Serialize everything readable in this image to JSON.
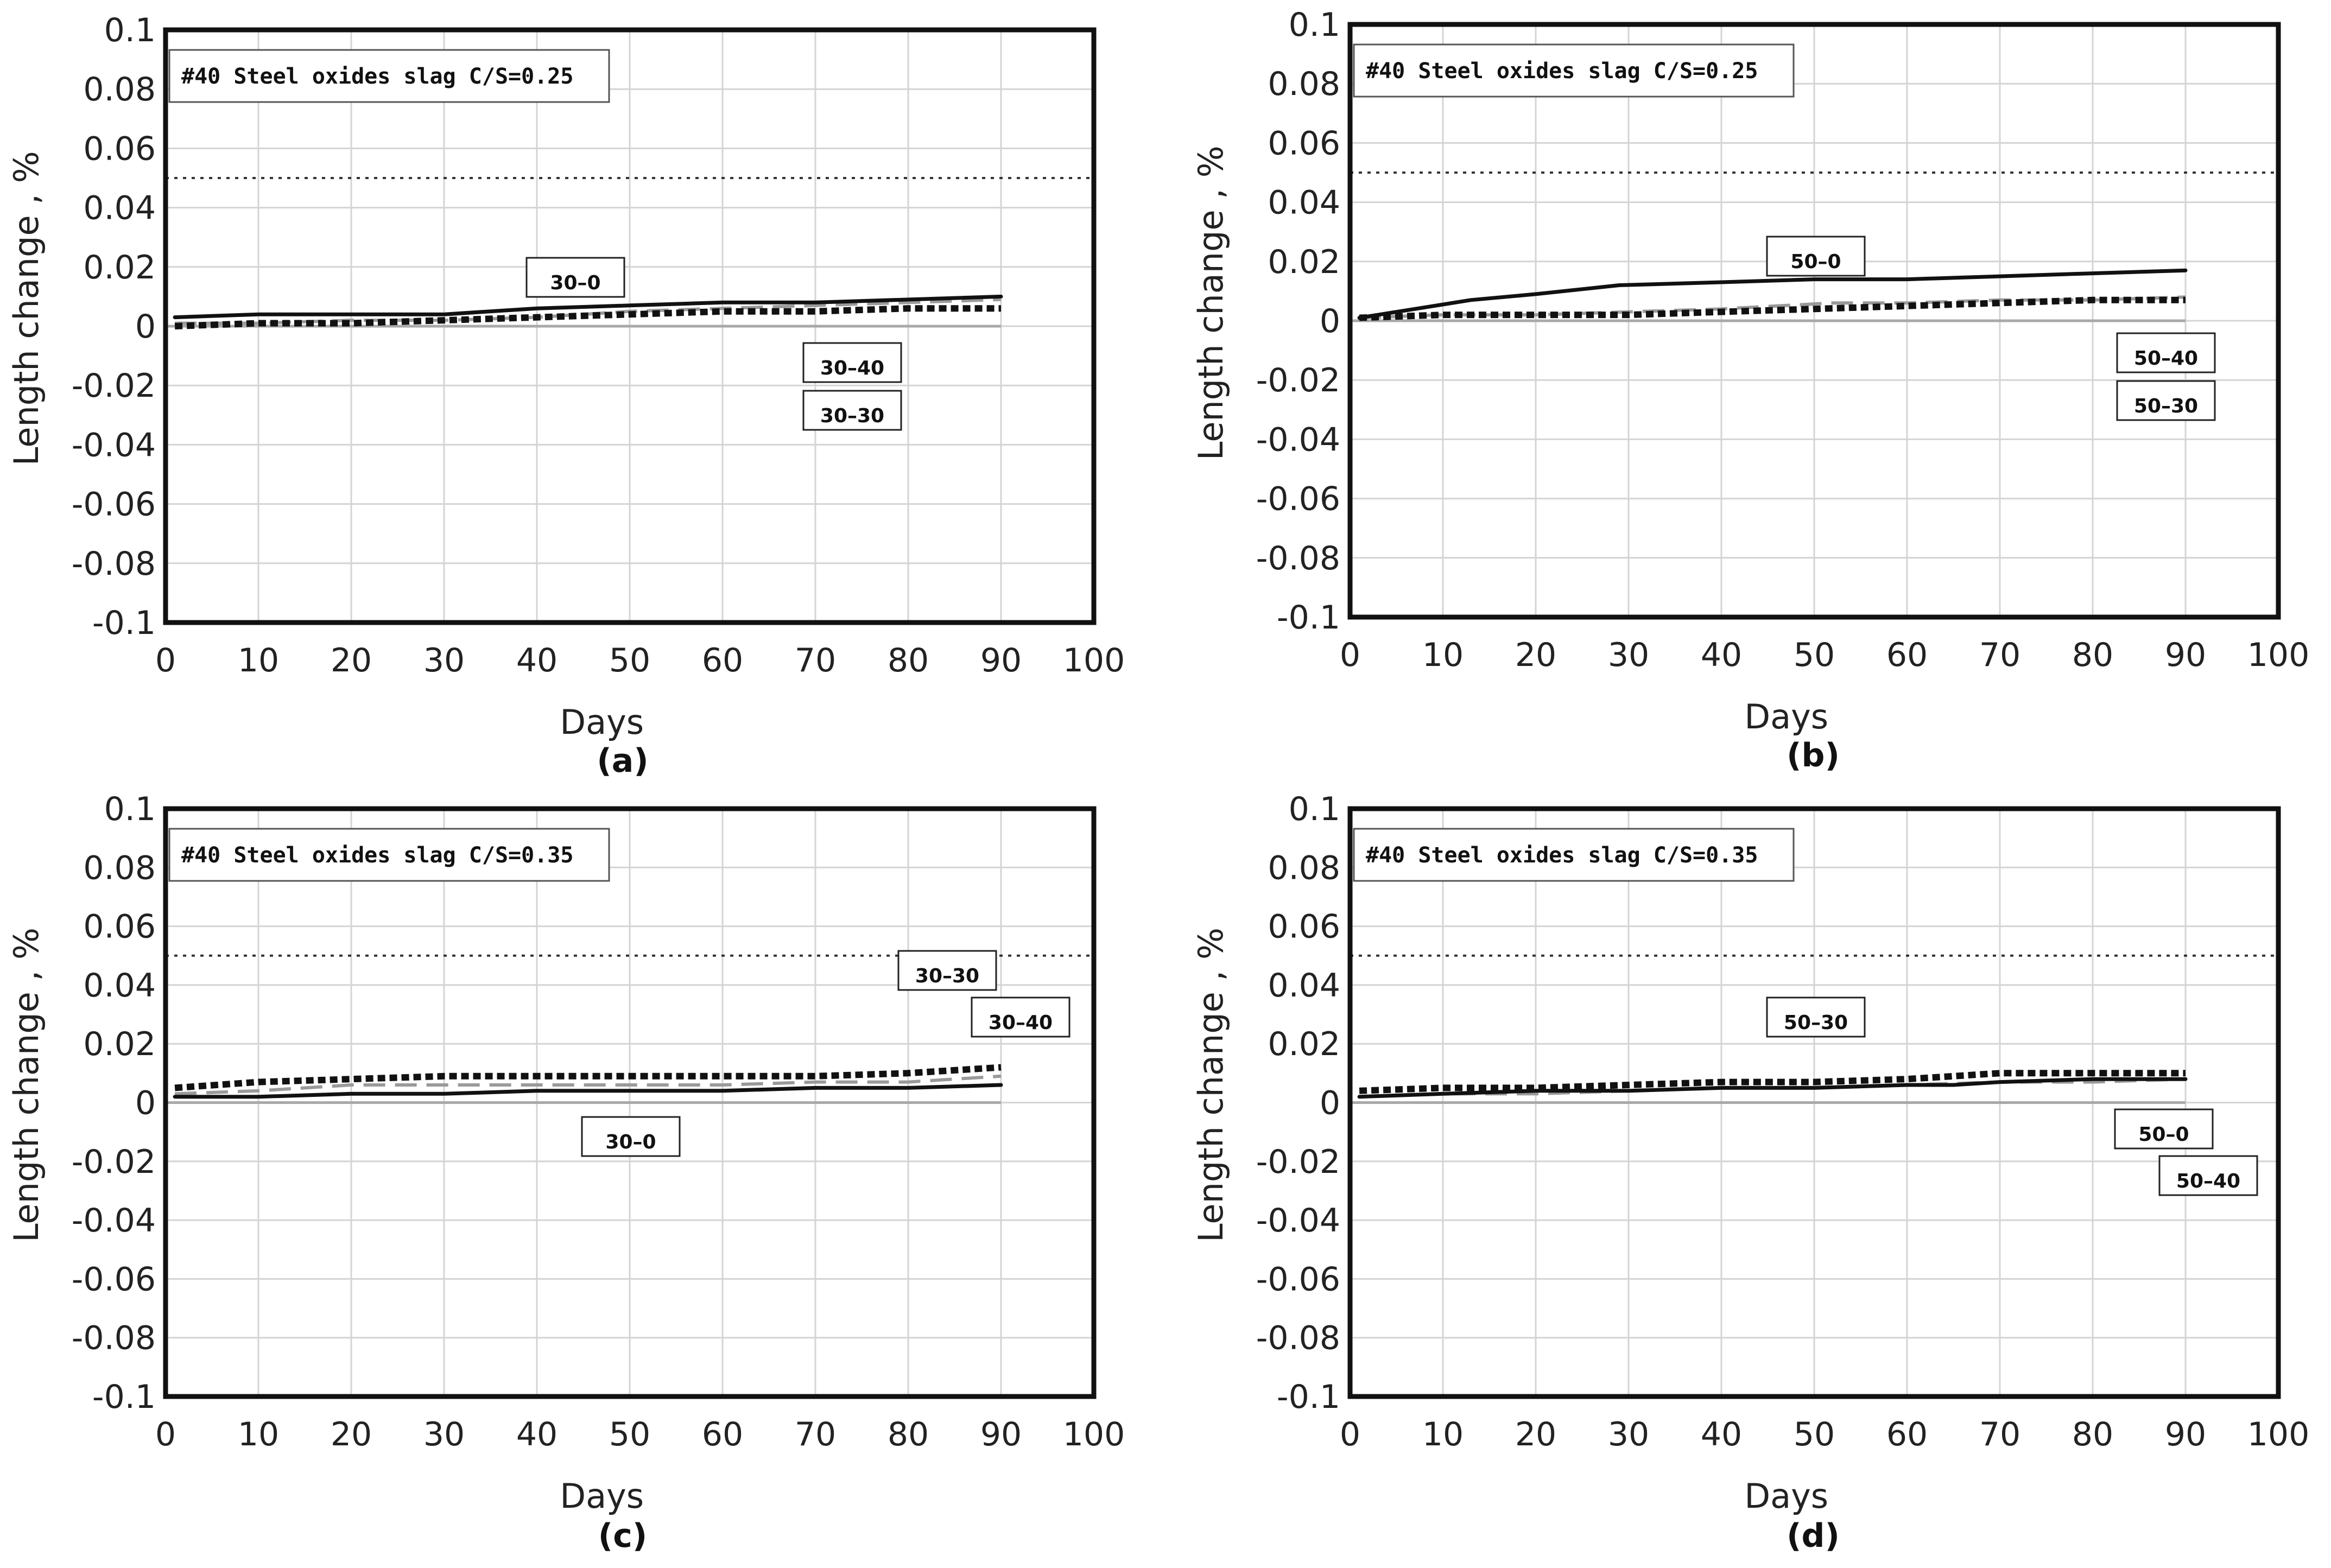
{
  "chart_data": [
    {
      "type": "line",
      "panel": "(a)",
      "title": "#40 Steel oxides slag C/S=0.25",
      "xlabel": "Days",
      "ylabel": "Length change , %",
      "xlim": [
        0,
        100
      ],
      "ylim": [
        -0.1,
        0.1
      ],
      "xticks": [
        "0",
        "10",
        "20",
        "30",
        "40",
        "50",
        "60",
        "70",
        "80",
        "90",
        "100"
      ],
      "yticks": [
        "0.1",
        "0.08",
        "0.06",
        "0.04",
        "0.02",
        "0",
        "-0.02",
        "-0.04",
        "-0.06",
        "-0.08",
        "-0.1"
      ],
      "grid": true,
      "limit_line": 0.05,
      "series": [
        {
          "name": "30–0",
          "style": "solid-black",
          "x": [
            1,
            10,
            20,
            30,
            40,
            50,
            60,
            70,
            80,
            90
          ],
          "y": [
            0.003,
            0.004,
            0.004,
            0.004,
            0.006,
            0.007,
            0.008,
            0.008,
            0.009,
            0.01
          ]
        },
        {
          "name": "30–30",
          "style": "dash-grey",
          "x": [
            1,
            10,
            20,
            30,
            40,
            50,
            60,
            70,
            80,
            90
          ],
          "y": [
            0.001,
            0.001,
            0.002,
            0.002,
            0.003,
            0.005,
            0.006,
            0.007,
            0.008,
            0.009
          ]
        },
        {
          "name": "30–40",
          "style": "dotted-black-thick",
          "x": [
            1,
            10,
            20,
            30,
            40,
            50,
            60,
            70,
            80,
            90
          ],
          "y": [
            0.0,
            0.001,
            0.001,
            0.002,
            0.003,
            0.004,
            0.005,
            0.005,
            0.006,
            0.006
          ]
        }
      ],
      "callouts": [
        "30–0",
        "30–40",
        "30–30"
      ]
    },
    {
      "type": "line",
      "panel": "(b)",
      "title": "#40 Steel oxides slag C/S=0.25",
      "xlabel": "Days",
      "ylabel": "Length change , %",
      "xlim": [
        0,
        100
      ],
      "ylim": [
        -0.1,
        0.1
      ],
      "xticks": [
        "0",
        "10",
        "20",
        "30",
        "40",
        "50",
        "60",
        "70",
        "80",
        "90",
        "100"
      ],
      "yticks": [
        "0.1",
        "0.08",
        "0.06",
        "0.04",
        "0.02",
        "0",
        "-0.02",
        "-0.04",
        "-0.06",
        "-0.08",
        "-0.1"
      ],
      "grid": true,
      "limit_line": 0.05,
      "series": [
        {
          "name": "50–0",
          "style": "solid-black",
          "x": [
            1,
            7,
            13,
            20,
            29,
            40,
            50,
            60,
            70,
            80,
            90
          ],
          "y": [
            0.001,
            0.004,
            0.007,
            0.009,
            0.012,
            0.013,
            0.014,
            0.014,
            0.015,
            0.016,
            0.017
          ]
        },
        {
          "name": "50–30",
          "style": "dash-grey",
          "x": [
            1,
            10,
            20,
            30,
            40,
            52,
            60,
            70,
            80,
            90
          ],
          "y": [
            0.001,
            0.002,
            0.002,
            0.003,
            0.004,
            0.006,
            0.006,
            0.007,
            0.007,
            0.008
          ]
        },
        {
          "name": "50–40",
          "style": "dotted-black-thick",
          "x": [
            1,
            10,
            20,
            30,
            40,
            50,
            60,
            70,
            80,
            90
          ],
          "y": [
            0.001,
            0.002,
            0.002,
            0.002,
            0.003,
            0.004,
            0.005,
            0.006,
            0.007,
            0.007
          ]
        }
      ],
      "callouts": [
        "50–0",
        "50–40",
        "50–30"
      ]
    },
    {
      "type": "line",
      "panel": "(c)",
      "title": "#40 Steel oxides slag C/S=0.35",
      "xlabel": "Days",
      "ylabel": "Length change , %",
      "xlim": [
        0,
        100
      ],
      "ylim": [
        -0.1,
        0.1
      ],
      "xticks": [
        "0",
        "10",
        "20",
        "30",
        "40",
        "50",
        "60",
        "70",
        "80",
        "90",
        "100"
      ],
      "yticks": [
        "0.1",
        "0.08",
        "0.06",
        "0.04",
        "0.02",
        "0",
        "-0.02",
        "-0.04",
        "-0.06",
        "-0.08",
        "-0.1"
      ],
      "grid": true,
      "limit_line": 0.05,
      "series": [
        {
          "name": "30–0",
          "style": "solid-black",
          "x": [
            1,
            10,
            20,
            30,
            40,
            50,
            60,
            70,
            80,
            90
          ],
          "y": [
            0.002,
            0.002,
            0.003,
            0.003,
            0.004,
            0.004,
            0.004,
            0.005,
            0.005,
            0.006
          ]
        },
        {
          "name": "30–30",
          "style": "dash-grey",
          "x": [
            1,
            10,
            20,
            30,
            40,
            50,
            60,
            70,
            80,
            90
          ],
          "y": [
            0.003,
            0.004,
            0.006,
            0.006,
            0.006,
            0.006,
            0.006,
            0.007,
            0.007,
            0.009
          ]
        },
        {
          "name": "30–40",
          "style": "dotted-black-thick",
          "x": [
            1,
            10,
            20,
            30,
            40,
            50,
            60,
            70,
            80,
            85,
            90
          ],
          "y": [
            0.005,
            0.007,
            0.008,
            0.009,
            0.009,
            0.009,
            0.009,
            0.009,
            0.01,
            0.011,
            0.012
          ]
        }
      ],
      "callouts": [
        "30–30",
        "30–40",
        "30–0"
      ]
    },
    {
      "type": "line",
      "panel": "(d)",
      "title": "#40 Steel oxides slag C/S=0.35",
      "xlabel": "Days",
      "ylabel": "Length change , %",
      "xlim": [
        0,
        100
      ],
      "ylim": [
        -0.1,
        0.1
      ],
      "xticks": [
        "0",
        "10",
        "20",
        "30",
        "40",
        "50",
        "60",
        "70",
        "80",
        "90",
        "100"
      ],
      "yticks": [
        "0.1",
        "0.08",
        "0.06",
        "0.04",
        "0.02",
        "0",
        "-0.02",
        "-0.04",
        "-0.06",
        "-0.08",
        "-0.1"
      ],
      "grid": true,
      "limit_line": 0.05,
      "series": [
        {
          "name": "50–0",
          "style": "solid-black",
          "x": [
            1,
            10,
            20,
            30,
            40,
            50,
            60,
            65,
            70,
            80,
            90
          ],
          "y": [
            0.002,
            0.003,
            0.004,
            0.004,
            0.005,
            0.005,
            0.006,
            0.006,
            0.007,
            0.008,
            0.008
          ]
        },
        {
          "name": "50–30",
          "style": "dash-grey",
          "x": [
            1,
            10,
            20,
            30,
            40,
            50,
            60,
            70,
            80,
            90
          ],
          "y": [
            0.002,
            0.003,
            0.003,
            0.004,
            0.005,
            0.005,
            0.006,
            0.007,
            0.007,
            0.008
          ]
        },
        {
          "name": "50–40",
          "style": "dotted-black-thick",
          "x": [
            1,
            10,
            20,
            30,
            40,
            50,
            60,
            65,
            70,
            80,
            90
          ],
          "y": [
            0.004,
            0.005,
            0.005,
            0.006,
            0.007,
            0.007,
            0.008,
            0.009,
            0.01,
            0.01,
            0.01
          ]
        }
      ],
      "callouts": [
        "50–30",
        "50–0",
        "50–40"
      ]
    }
  ]
}
